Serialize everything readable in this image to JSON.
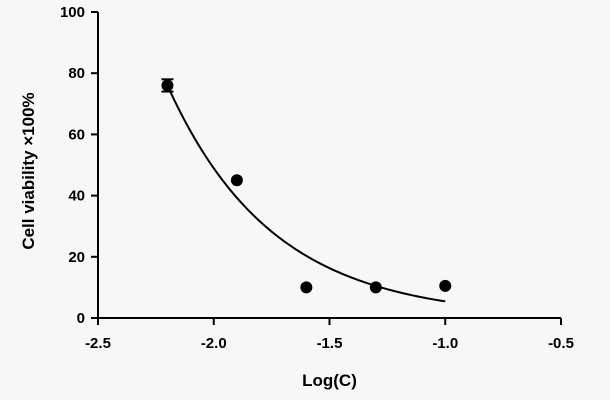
{
  "chart_data": {
    "type": "scatter",
    "xlabel": "Log(C)",
    "ylabel": "Cell viability  ×100%",
    "xlim": [
      -2.5,
      -0.5
    ],
    "ylim": [
      0,
      100
    ],
    "xticks": [
      -2.5,
      -2.0,
      -1.5,
      -1.0,
      -0.5
    ],
    "xtick_labels": [
      "-2.5",
      "-2.0",
      "-1.5",
      "-1.0",
      "-0.5"
    ],
    "yticks": [
      0,
      20,
      40,
      60,
      80,
      100
    ],
    "ytick_labels": [
      "0",
      "20",
      "40",
      "60",
      "80",
      "100"
    ],
    "grid": false,
    "series": [
      {
        "x": [
          -2.2,
          -1.9,
          -1.6,
          -1.3,
          -1.0
        ],
        "y": [
          76,
          45,
          10,
          10,
          10.5
        ],
        "error": [
          2,
          0,
          0,
          0,
          0
        ],
        "marker": "circle",
        "color": "#000000"
      }
    ],
    "fit_curve": {
      "type": "exponential_decay",
      "x_range": [
        -2.2,
        -1.0
      ],
      "y_start": 76,
      "plateau": 0,
      "decay_per_log_unit": 2.2,
      "color": "#000000"
    }
  }
}
